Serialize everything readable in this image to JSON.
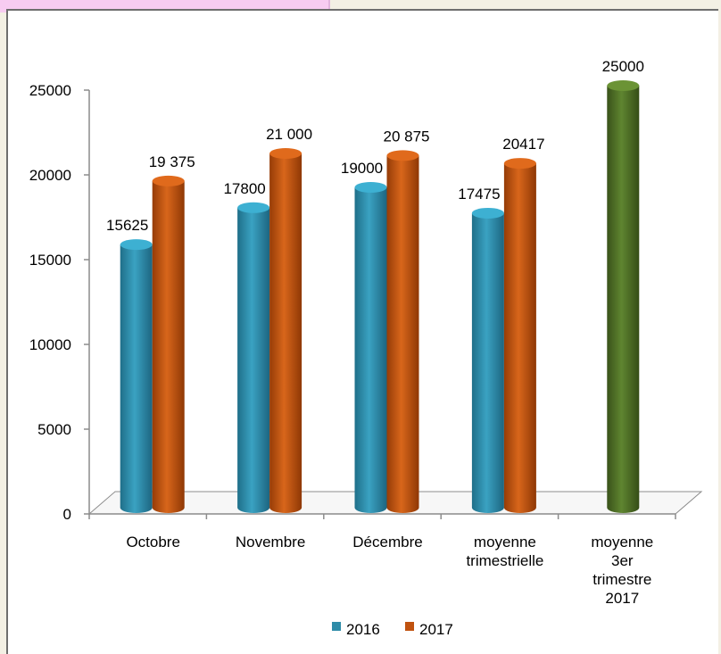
{
  "chart_data": {
    "type": "bar",
    "categories": [
      "Octobre",
      "Novembre",
      "Décembre",
      "moyenne trimestrielle",
      "moyenne 3er trimestre 2017"
    ],
    "category_lines": [
      [
        "Octobre"
      ],
      [
        "Novembre"
      ],
      [
        "Décembre"
      ],
      [
        "moyenne",
        "trimestrielle"
      ],
      [
        "moyenne",
        "3er",
        "trimestre",
        "2017"
      ]
    ],
    "series": [
      {
        "name": "2016",
        "color": "#2e8ca8",
        "values": [
          15625,
          17800,
          19000,
          17475,
          null
        ],
        "labels": [
          "15625",
          "17800",
          "19000",
          "17475",
          ""
        ]
      },
      {
        "name": "2017",
        "color": "#c0520f",
        "values": [
          19375,
          21000,
          20875,
          20417,
          25000
        ],
        "labels": [
          "19 375",
          "21 000",
          "20 875",
          "20417",
          "25000"
        ],
        "point_colors": [
          null,
          null,
          null,
          null,
          "#4e6f25"
        ]
      }
    ],
    "ylim": [
      0,
      25000
    ],
    "yticks": [
      "0",
      "5000",
      "10000",
      "15000",
      "20000",
      "25000"
    ],
    "legend_position": "bottom",
    "grid": false
  }
}
